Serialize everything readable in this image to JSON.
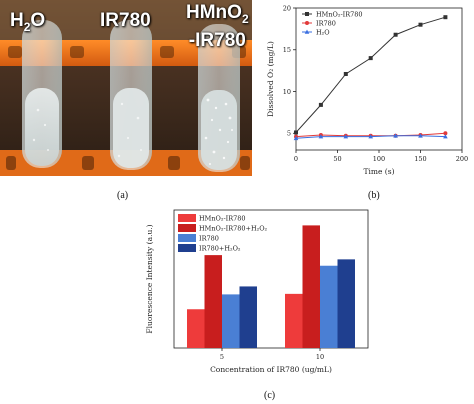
{
  "panels": {
    "a": {
      "caption": "(a)",
      "tube_labels": [
        {
          "main": "H",
          "sub": "2",
          "rest": "O",
          "line2": ""
        },
        {
          "main": "IR780",
          "sub": "",
          "rest": "",
          "line2": ""
        },
        {
          "main": "HMnO",
          "sub": "2",
          "rest": "",
          "line2": "-IR780"
        }
      ]
    },
    "b": {
      "caption": "(b)"
    },
    "c": {
      "caption": "(c)"
    }
  },
  "colors": {
    "red": "#ee3b3b",
    "darkred": "#c81e1e",
    "blue": "#4a7fd4",
    "navy": "#1f3f8f",
    "line_black": "#333333",
    "line_red": "#e23a3a",
    "line_blue": "#3a6fe0"
  },
  "chart_data": [
    {
      "type": "line",
      "xlabel": "Time (s)",
      "ylabel": "Dissolved O₂ (mg/L)",
      "xlim": [
        0,
        200
      ],
      "ylim": [
        3,
        20
      ],
      "xticks": [
        0,
        50,
        100,
        150,
        200
      ],
      "yticks": [
        5,
        10,
        15,
        20
      ],
      "legend_position": "top-left",
      "series": [
        {
          "name": "HMnO₂-IR780",
          "marker": "square",
          "color": "#333333",
          "x": [
            0,
            30,
            60,
            90,
            120,
            150,
            180
          ],
          "y": [
            5.1,
            8.4,
            12.1,
            14.0,
            16.8,
            18.0,
            18.9
          ]
        },
        {
          "name": "IR780",
          "marker": "circle",
          "color": "#e23a3a",
          "x": [
            0,
            30,
            60,
            90,
            120,
            150,
            180
          ],
          "y": [
            4.6,
            4.8,
            4.7,
            4.7,
            4.7,
            4.8,
            5.0
          ]
        },
        {
          "name": "H₂O",
          "marker": "triangle",
          "color": "#3a6fe0",
          "x": [
            0,
            30,
            60,
            90,
            120,
            150,
            180
          ],
          "y": [
            4.4,
            4.6,
            4.6,
            4.6,
            4.7,
            4.7,
            4.6
          ]
        }
      ]
    },
    {
      "type": "bar",
      "xlabel": "Concentration of IR780 (ug/mL)",
      "ylabel": "Fluorescence Intensity (a.u.)",
      "categories": [
        "5",
        "10"
      ],
      "ylim": [
        0,
        2600
      ],
      "legend_position": "top-left",
      "series": [
        {
          "name": "HMnO₂-IR780",
          "color": "#ee3b3b",
          "values": [
            730,
            1020
          ]
        },
        {
          "name": "HMnO₂-IR780+H₂O₂",
          "color": "#c81e1e",
          "values": [
            1750,
            2310
          ]
        },
        {
          "name": "IR780",
          "color": "#4a7fd4",
          "values": [
            1010,
            1550
          ]
        },
        {
          "name": "IR780+H₂O₂",
          "color": "#1f3f8f",
          "values": [
            1160,
            1670
          ]
        }
      ]
    }
  ]
}
